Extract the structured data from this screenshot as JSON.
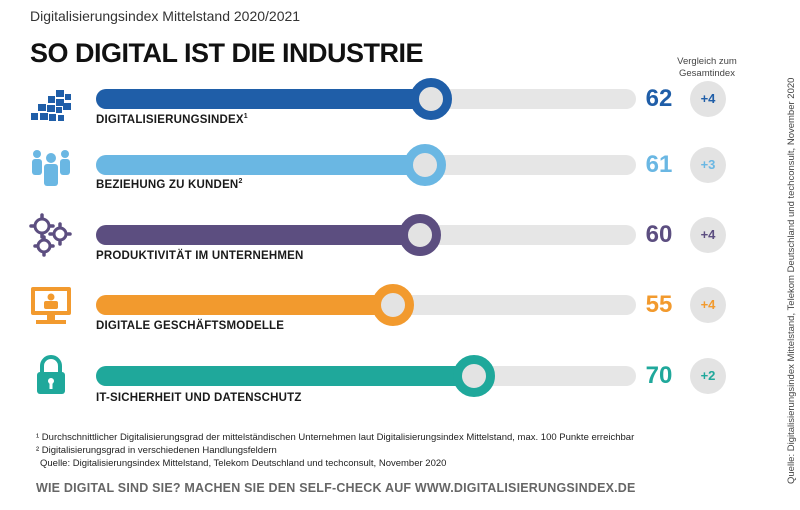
{
  "header": {
    "subtitle": "Digitalisierungsindex Mittelstand 2020/2021",
    "title": "SO DIGITAL IST DIE INDUSTRIE",
    "comparison_header_line1": "Vergleich zum",
    "comparison_header_line2": "Gesamtindex"
  },
  "chart_data": {
    "type": "bar",
    "orientation": "horizontal",
    "xlim": [
      0,
      100
    ],
    "categories": [
      "DIGITALISIERUNGSINDEX¹",
      "BEZIEHUNG ZU KUNDEN²",
      "PRODUKTIVITÄT IM UNTERNEHMEN",
      "DIGITALE GESCHÄFTSMODELLE",
      "IT-SICHERHEIT UND DATENSCHUTZ"
    ],
    "values": [
      62,
      61,
      60,
      55,
      70
    ],
    "comparison_to_total_index": [
      "+4",
      "+3",
      "+4",
      "+4",
      "+2"
    ]
  },
  "rows": [
    {
      "label": "DIGITALISIERUNGSINDEX",
      "sup": "1",
      "value": "62",
      "delta": "+4",
      "color": "#1f5ea8",
      "icon": "grid-blocks-icon"
    },
    {
      "label": "BEZIEHUNG ZU KUNDEN",
      "sup": "2",
      "value": "61",
      "delta": "+3",
      "color": "#6ab7e3",
      "icon": "people-group-icon"
    },
    {
      "label": "PRODUKTIVITÄT IM UNTERNEHMEN",
      "sup": "",
      "value": "60",
      "delta": "+4",
      "color": "#5c4e80",
      "icon": "gears-icon"
    },
    {
      "label": "DIGITALE GESCHÄFTSMODELLE",
      "sup": "",
      "value": "55",
      "delta": "+4",
      "color": "#f29a2e",
      "icon": "monitor-user-icon"
    },
    {
      "label": "IT-SICHERHEIT UND DATENSCHUTZ",
      "sup": "",
      "value": "70",
      "delta": "+2",
      "color": "#1fa89b",
      "icon": "padlock-icon"
    }
  ],
  "footnotes": {
    "note1": "¹ Durchschnittlicher Digitalisierungsgrad der mittelständischen Unternehmen laut Digitalisierungsindex Mittelstand, max. 100 Punkte erreichbar",
    "note2": "² Digitalisierungsgrad in verschiedenen Handlungsfeldern",
    "source": "Quelle: Digitalisierungsindex Mittelstand, Telekom Deutschland und techconsult, November 2020"
  },
  "cta": "WIE DIGITAL SIND SIE? MACHEN SIE DEN SELF-CHECK AUF WWW.DIGITALISIERUNGSINDEX.DE",
  "vertical_source": "Quelle: Digitalisierungsindex Mittelstand, Telekom Deutschland und techconsult, November 2020"
}
